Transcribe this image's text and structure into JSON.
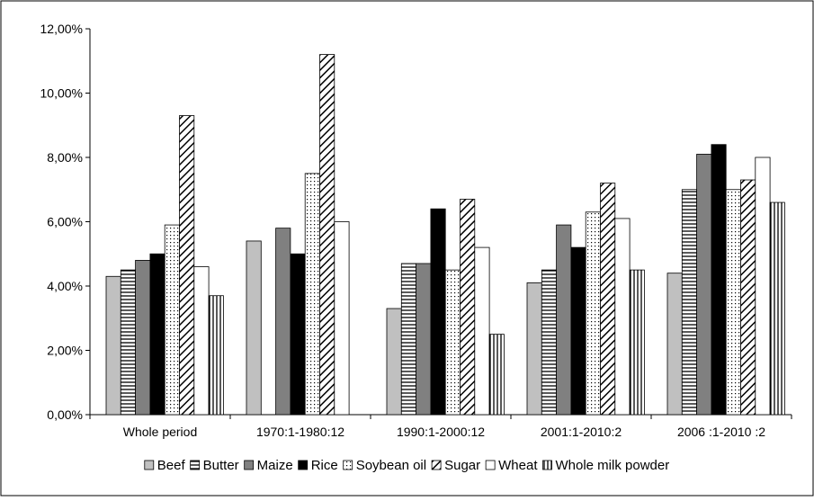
{
  "chart_data": {
    "type": "bar",
    "title": "",
    "xlabel": "",
    "ylabel": "",
    "ylim": [
      0,
      12
    ],
    "ytick_values": [
      0,
      2,
      4,
      6,
      8,
      10,
      12
    ],
    "ytick_labels": [
      "0,00%",
      "2,00%",
      "4,00%",
      "6,00%",
      "8,00%",
      "10,00%",
      "12,00%"
    ],
    "grid": false,
    "legend_position": "bottom",
    "categories": [
      "Whole period",
      "1970:1-1980:12",
      "1990:1-2000:12",
      "2001:1-2010:2",
      "2006 :1-2010 :2"
    ],
    "series": [
      {
        "name": "Beef",
        "values": [
          4.3,
          5.4,
          3.3,
          4.1,
          4.4
        ]
      },
      {
        "name": "Butter",
        "values": [
          4.5,
          null,
          4.7,
          4.5,
          7.0
        ]
      },
      {
        "name": "Maize",
        "values": [
          4.8,
          5.8,
          4.7,
          5.9,
          8.1
        ]
      },
      {
        "name": "Rice",
        "values": [
          5.0,
          5.0,
          6.4,
          5.2,
          8.4
        ]
      },
      {
        "name": "Soybean oil",
        "values": [
          5.9,
          7.5,
          4.5,
          6.3,
          7.0
        ]
      },
      {
        "name": "Sugar",
        "values": [
          9.3,
          11.2,
          6.7,
          7.2,
          7.3
        ]
      },
      {
        "name": "Wheat",
        "values": [
          4.6,
          6.0,
          5.2,
          6.1,
          8.0
        ]
      },
      {
        "name": "Whole milk powder",
        "values": [
          3.7,
          null,
          2.5,
          4.5,
          6.6
        ]
      }
    ],
    "series_styles": [
      {
        "fill": "#c0c0c0",
        "pattern": "solid"
      },
      {
        "fill": "#ffffff",
        "pattern": "horizontal-lines"
      },
      {
        "fill": "#808080",
        "pattern": "solid"
      },
      {
        "fill": "#000000",
        "pattern": "solid"
      },
      {
        "fill": "#ffffff",
        "pattern": "dots"
      },
      {
        "fill": "#ffffff",
        "pattern": "diagonal-lines"
      },
      {
        "fill": "#ffffff",
        "pattern": "solid"
      },
      {
        "fill": "#ffffff",
        "pattern": "vertical-lines"
      }
    ]
  }
}
